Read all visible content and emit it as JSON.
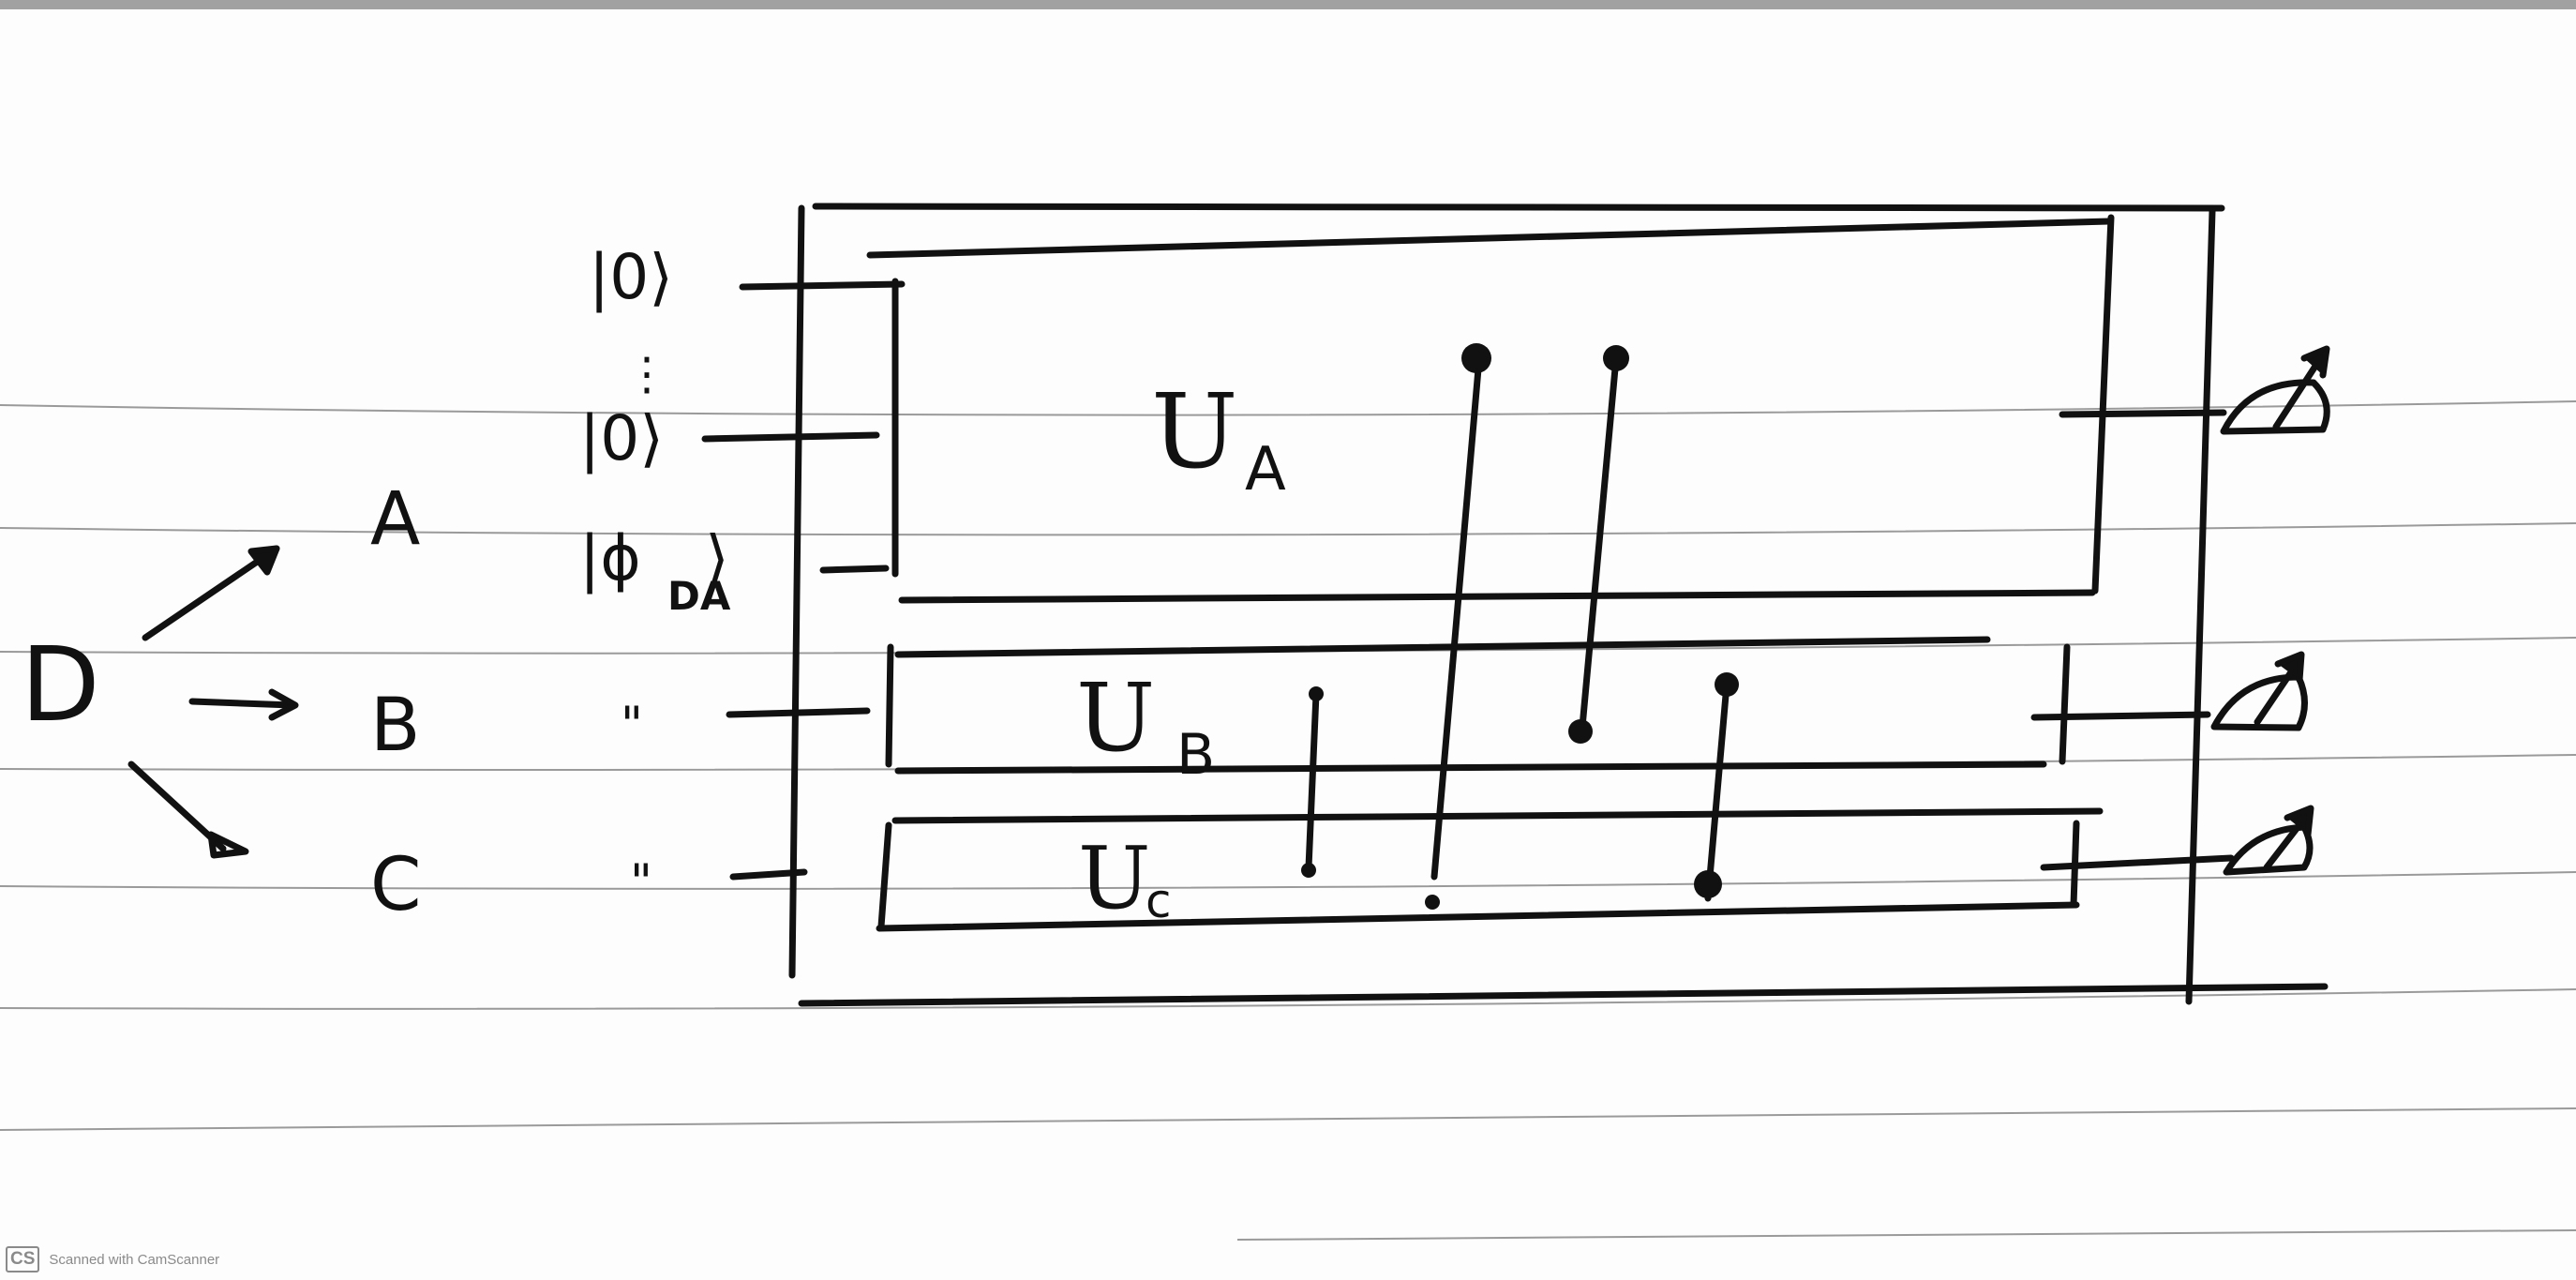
{
  "labels": {
    "source": "D",
    "party_a": "A",
    "party_b": "B",
    "party_c": "C",
    "ket_zero_top": "|0⟩",
    "ket_zero_mid": "|0⟩",
    "ket_phi": "|ϕ",
    "ket_phi_sub": "DA",
    "ket_phi_close": "⟩",
    "dots": "⋮",
    "ditto_b": "\"",
    "ditto_c": "\"",
    "ua": "U",
    "ua_sub": "A",
    "ub": "U",
    "ub_sub": "B",
    "uc": "U",
    "uc_sub": "c"
  },
  "watermark": {
    "logo": "CS",
    "text": "Scanned with CamScanner"
  },
  "icons": [
    "meter-icon",
    "meter-icon",
    "meter-icon",
    "arrow-icon"
  ]
}
